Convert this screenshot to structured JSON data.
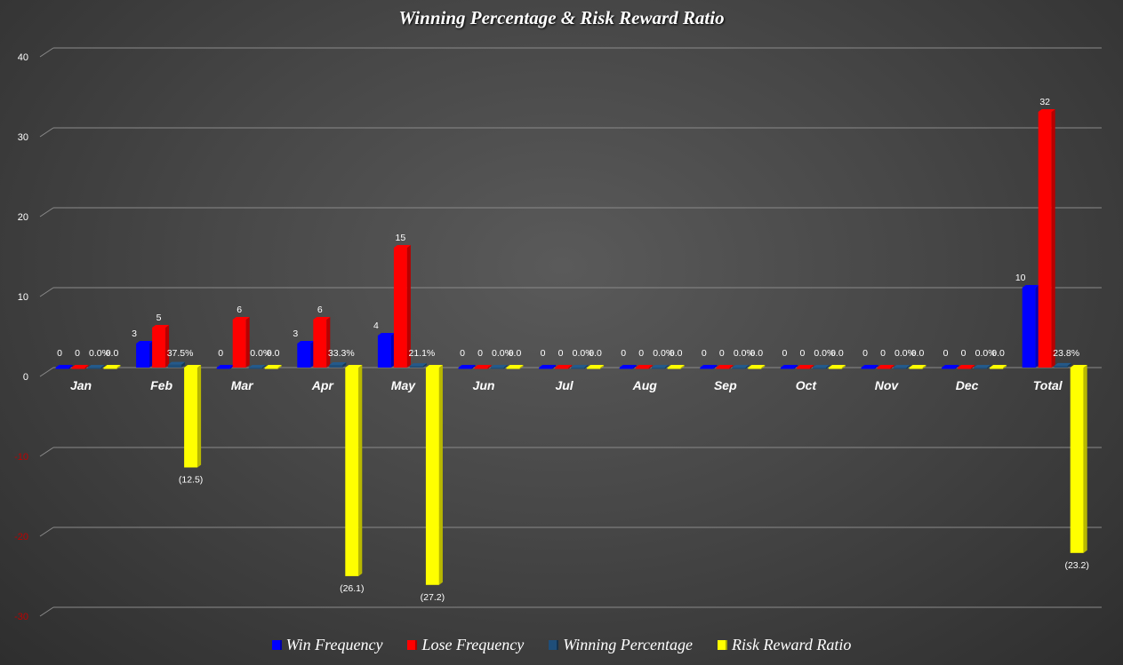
{
  "chart_data": {
    "type": "bar",
    "title": "Winning Percentage & Risk Reward Ratio",
    "categories": [
      "Jan",
      "Feb",
      "Mar",
      "Apr",
      "May",
      "Jun",
      "Jul",
      "Aug",
      "Sep",
      "Oct",
      "Nov",
      "Dec",
      "Total"
    ],
    "ylim": [
      -30,
      40
    ],
    "yticks": [
      40,
      30,
      20,
      10,
      0,
      -10,
      -20,
      -30
    ],
    "ytick_labels": [
      "40",
      "30",
      "20",
      "10",
      "0",
      "-10",
      "-20",
      "-30"
    ],
    "grid": true,
    "legend_position": "bottom",
    "series": [
      {
        "name": "Win Frequency",
        "color": "#0000ff",
        "values": [
          0,
          3,
          0,
          3,
          4,
          0,
          0,
          0,
          0,
          0,
          0,
          0,
          10
        ],
        "labels": [
          "0",
          "3",
          "0",
          "3",
          "4",
          "0",
          "0",
          "0",
          "0",
          "0",
          "0",
          "0",
          "10"
        ]
      },
      {
        "name": "Lose Frequency",
        "color": "#ff0000",
        "values": [
          0,
          5,
          6,
          6,
          15,
          0,
          0,
          0,
          0,
          0,
          0,
          0,
          32
        ],
        "labels": [
          "0",
          "5",
          "6",
          "6",
          "15",
          "0",
          "0",
          "0",
          "0",
          "0",
          "0",
          "0",
          "32"
        ]
      },
      {
        "name": "Winning Percentage",
        "color": "#1f4e79",
        "values": [
          0,
          0.375,
          0,
          0.333,
          0.211,
          0,
          0,
          0,
          0,
          0,
          0,
          0,
          0.238
        ],
        "labels": [
          "0.0%",
          "37.5%",
          "0.0%",
          "33.3%",
          "21.1%",
          "0.0%",
          "0.0%",
          "0.0%",
          "0.0%",
          "0.0%",
          "0.0%",
          "0.0%",
          "23.8%"
        ]
      },
      {
        "name": "Risk Reward Ratio",
        "color": "#ffff00",
        "values": [
          0,
          -12.5,
          0,
          -26.1,
          -27.2,
          0,
          0,
          0,
          0,
          0,
          0,
          0,
          -23.2
        ],
        "labels": [
          "0.0",
          "(12.5)",
          "0.0",
          "(26.1)",
          "(27.2)",
          "0.0",
          "0.0",
          "0.0",
          "0.0",
          "0.0",
          "0.0",
          "0.0",
          "(23.2)"
        ]
      }
    ]
  }
}
